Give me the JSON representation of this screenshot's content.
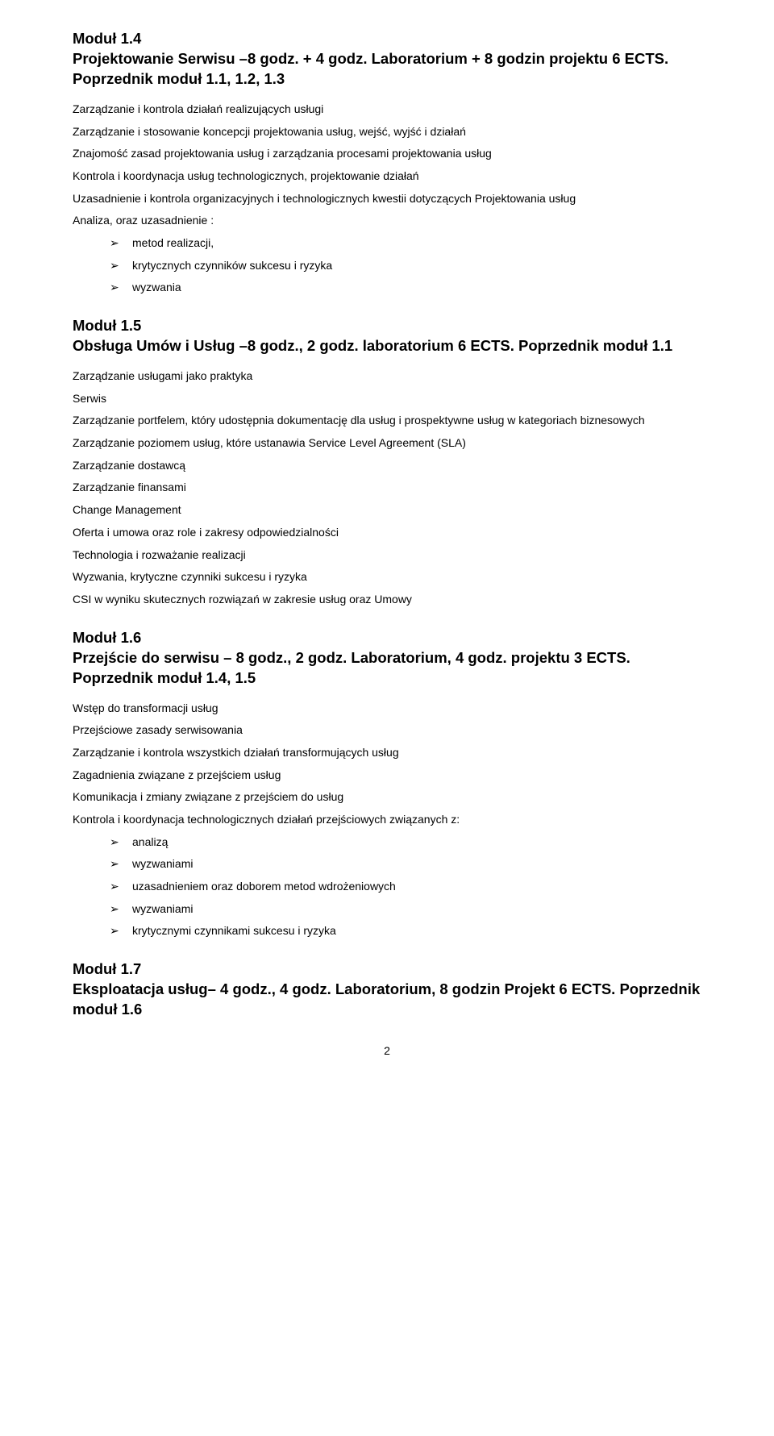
{
  "page_number": "2",
  "modules": {
    "m14": {
      "title_lines": [
        "Moduł 1.4",
        "Projektowanie Serwisu –8  godz. + 4 godz. Laboratorium + 8 godzin projektu 6 ECTS. Poprzednik moduł 1.1, 1.2, 1.3"
      ],
      "lines": [
        "Zarządzanie i kontrola działań realizujących usługi",
        "Zarządzanie i stosowanie koncepcji projektowania usług, wejść, wyjść  i działań",
        "Znajomość zasad projektowania usług i zarządzania procesami projektowania usług",
        "Kontrola i koordynacja usług technologicznych, projektowanie działań",
        "Uzasadnienie i kontrola organizacyjnych i technologicznych kwestii dotyczących Projektowania usług",
        "Analiza, oraz uzasadnienie  :"
      ],
      "bullets": [
        "metod realizacji,",
        "krytycznych czynników sukcesu i ryzyka",
        "wyzwania"
      ]
    },
    "m15": {
      "title_lines": [
        "Moduł 1.5",
        "Obsługa Umów i Usług –8 godz., 2 godz. laboratorium 6 ECTS. Poprzednik moduł 1.1"
      ],
      "lines": [
        "Zarządzanie usługami jako praktyka",
        "Serwis",
        "Zarządzanie portfelem, który udostępnia dokumentację dla usług i prospektywne usług w kategoriach biznesowych",
        "Zarządzanie poziomem usług, które ustanawia Service Level Agreement (SLA)",
        "Zarządzanie dostawcą",
        "Zarządzanie finansami",
        "Change Management",
        "Oferta i umowa oraz role i zakresy odpowiedzialności",
        "Technologia i rozważanie realizacji",
        "Wyzwania, krytyczne czynniki sukcesu i ryzyka",
        "CSI w wyniku skutecznych rozwiązań w zakresie usług oraz Umowy"
      ]
    },
    "m16": {
      "title_lines": [
        "Moduł 1.6",
        "Przejście do serwisu – 8 godz., 2 godz. Laboratorium, 4 godz. projektu 3 ECTS. Poprzednik moduł 1.4, 1.5"
      ],
      "lines": [
        "Wstęp do transformacji usług",
        "Przejściowe zasady serwisowania",
        "Zarządzanie i kontrola wszystkich działań transformujących usług",
        "Zagadnienia związane z przejściem usług",
        "Komunikacja i zmiany związane z przejściem do usług",
        "Kontrola i koordynacja technologicznych działań przejściowych związanych z:"
      ],
      "bullets": [
        "analizą",
        "wyzwaniami",
        "uzasadnieniem oraz doborem metod wdrożeniowych",
        "wyzwaniami",
        "krytycznymi czynnikami sukcesu i ryzyka"
      ]
    },
    "m17": {
      "title_lines": [
        "Moduł 1.7",
        "Eksploatacja usług– 4 godz., 4 godz. Laboratorium, 8 godzin Projekt 6 ECTS. Poprzednik moduł 1.6"
      ]
    }
  }
}
